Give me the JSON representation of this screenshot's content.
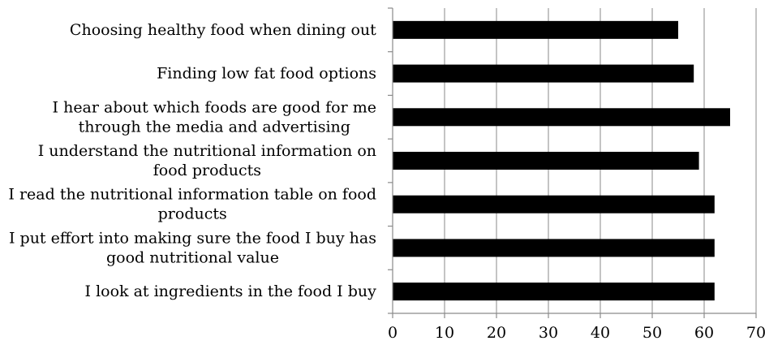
{
  "chart_data": {
    "type": "bar",
    "orientation": "horizontal",
    "categories": [
      [
        "Choosing healthy food when dining out"
      ],
      [
        "Finding low fat food options"
      ],
      [
        "I hear about which foods are good for me",
        "through the media and advertising"
      ],
      [
        "I understand the nutritional information on",
        "food products"
      ],
      [
        "I read the nutritional information table on food",
        "products"
      ],
      [
        "I put effort into making sure the food I buy has",
        "good nutritional value"
      ],
      [
        "I look at ingredients in the food I buy"
      ]
    ],
    "values": [
      55,
      58,
      65,
      59,
      62,
      62,
      62
    ],
    "xlim": [
      0,
      70
    ],
    "xticks": [
      0,
      10,
      20,
      30,
      40,
      50,
      60,
      70
    ],
    "grid": true,
    "bar_color": "#000000",
    "title": "",
    "xlabel": "",
    "ylabel": ""
  }
}
